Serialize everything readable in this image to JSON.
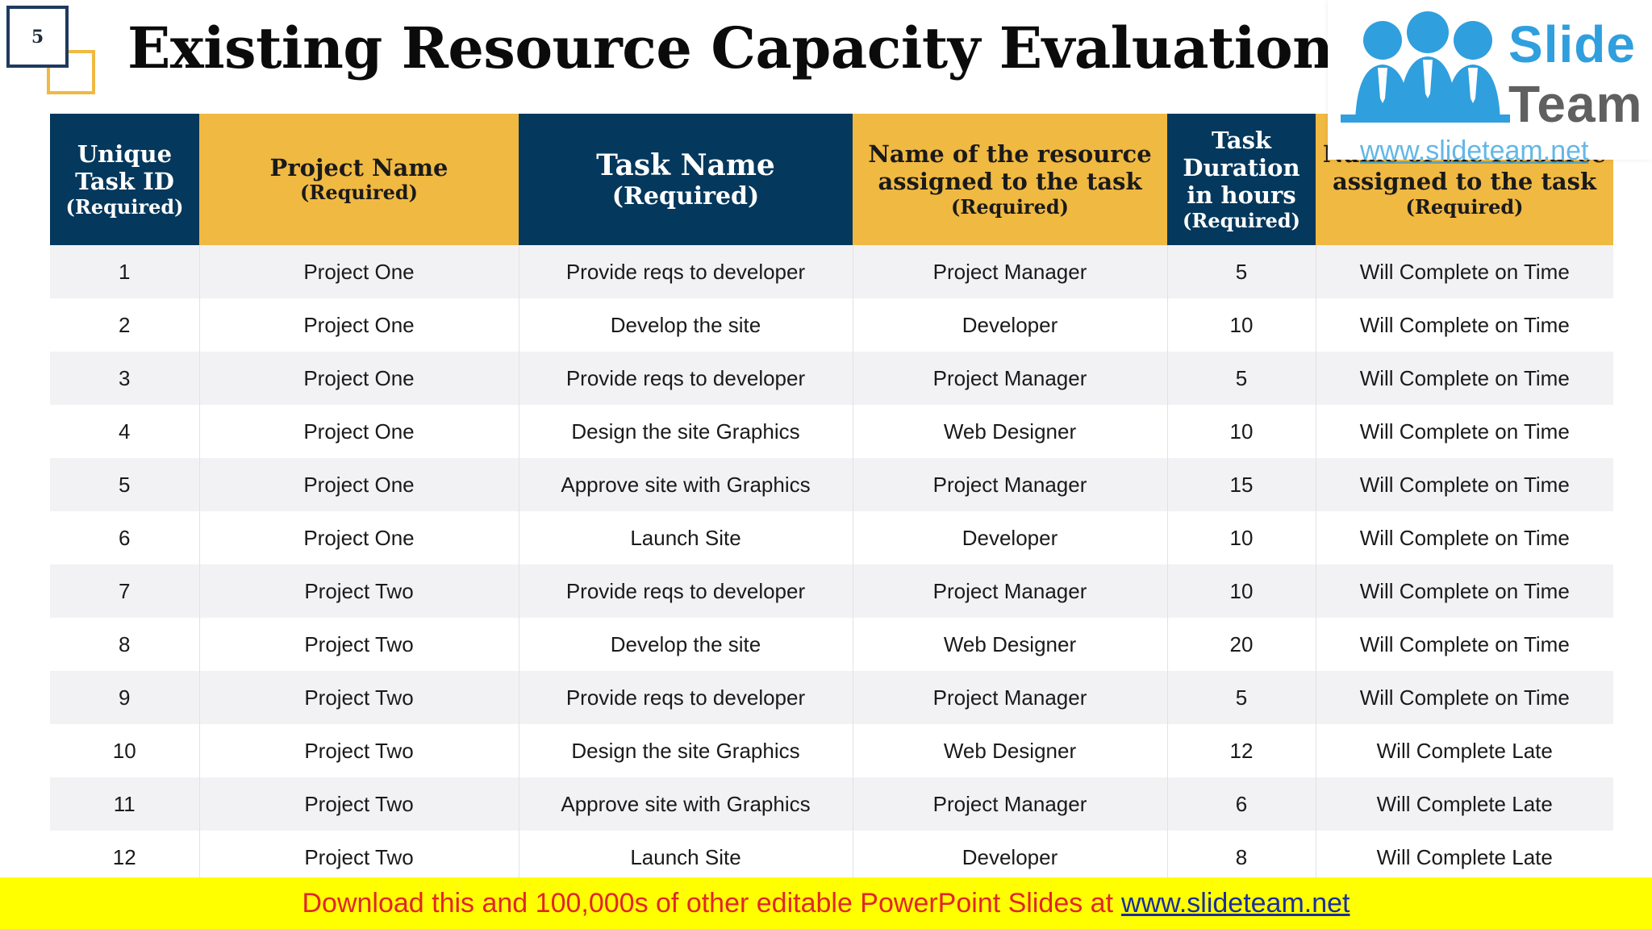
{
  "slide": {
    "number": "5",
    "title": "Existing Resource Capacity Evaluation"
  },
  "logo": {
    "word1": "Slide",
    "word2": "Team",
    "url": "www.slideteam.net"
  },
  "colors": {
    "navy": "#04385c",
    "gold": "#f0b942",
    "banner": "#ffff00",
    "banner_text": "#e0262b"
  },
  "table": {
    "headers": [
      {
        "main": "Unique Task ID",
        "req": "(Required)"
      },
      {
        "main": "Project Name",
        "req": "(Required)"
      },
      {
        "main": "Task Name",
        "req": "(Required)"
      },
      {
        "main": "Name of the resource assigned to the task",
        "req": "(Required)"
      },
      {
        "main": "Task Duration in hours",
        "req": "(Required)"
      },
      {
        "main": "Name of the resource assigned to the task",
        "req": "(Required)"
      }
    ],
    "rows": [
      [
        "1",
        "Project One",
        "Provide reqs to developer",
        "Project Manager",
        "5",
        "Will Complete on Time"
      ],
      [
        "2",
        "Project One",
        "Develop the site",
        "Developer",
        "10",
        "Will Complete on Time"
      ],
      [
        "3",
        "Project One",
        "Provide reqs to developer",
        "Project Manager",
        "5",
        "Will Complete on Time"
      ],
      [
        "4",
        "Project One",
        "Design the site Graphics",
        "Web Designer",
        "10",
        "Will Complete on Time"
      ],
      [
        "5",
        "Project One",
        "Approve site with Graphics",
        "Project Manager",
        "15",
        "Will Complete on Time"
      ],
      [
        "6",
        "Project One",
        "Launch Site",
        "Developer",
        "10",
        "Will Complete on Time"
      ],
      [
        "7",
        "Project Two",
        "Provide reqs to developer",
        "Project Manager",
        "10",
        "Will Complete on Time"
      ],
      [
        "8",
        "Project Two",
        "Develop the site",
        "Web Designer",
        "20",
        "Will Complete on Time"
      ],
      [
        "9",
        "Project Two",
        "Provide reqs to developer",
        "Project Manager",
        "5",
        "Will Complete on Time"
      ],
      [
        "10",
        "Project Two",
        "Design the site Graphics",
        "Web Designer",
        "12",
        "Will Complete Late"
      ],
      [
        "11",
        "Project Two",
        "Approve site with Graphics",
        "Project Manager",
        "6",
        "Will Complete Late"
      ],
      [
        "12",
        "Project Two",
        "Launch Site",
        "Developer",
        "8",
        "Will Complete Late"
      ]
    ]
  },
  "banner": {
    "text": "Download this and 100,000s of other editable PowerPoint Slides at",
    "link": "www.slideteam.net"
  }
}
